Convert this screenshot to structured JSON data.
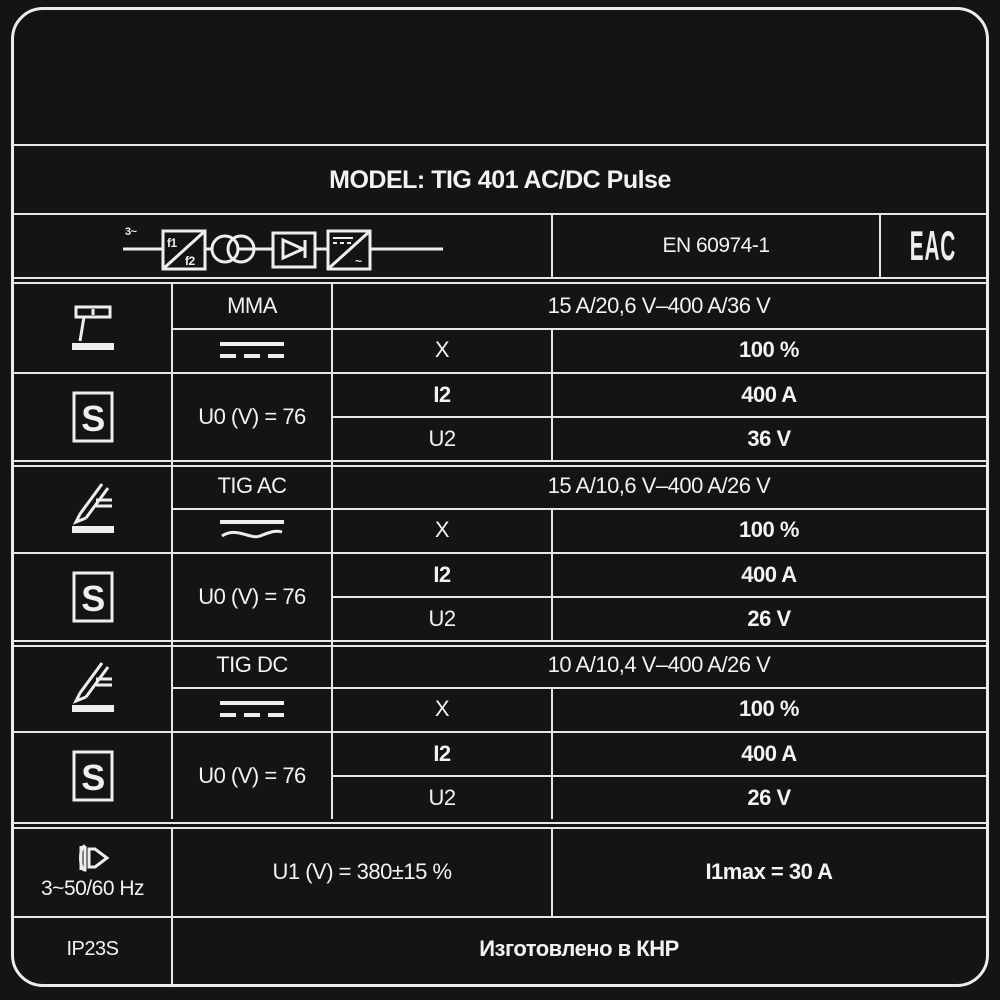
{
  "model_title": "MODEL: TIG 401 AC/DC Pulse",
  "circuit": {
    "supply_label": "3~",
    "f1": "f1",
    "f2": "f2",
    "icon": "inverter-circuit-diagram"
  },
  "standard": "EN 60974-1",
  "certification_mark": "EAC",
  "modes": [
    {
      "name": "MMA",
      "icon": "electrode-holder-icon",
      "current_type": "dc",
      "range": "15 A/20,6 V–400 A/36 V",
      "x_label": "X",
      "duty": "100 %",
      "u0": "U0 (V) = 76",
      "i2_label": "I2",
      "i2": "400 A",
      "u2_label": "U2",
      "u2": "36 V"
    },
    {
      "name": "TIG AC",
      "icon": "tig-torch-icon",
      "current_type": "ac",
      "range": "15 A/10,6 V–400 A/26 V",
      "x_label": "X",
      "duty": "100 %",
      "u0": "U0 (V) = 76",
      "i2_label": "I2",
      "i2": "400 A",
      "u2_label": "U2",
      "u2": "26 V"
    },
    {
      "name": "TIG DC",
      "icon": "tig-torch-icon",
      "current_type": "dc",
      "range": "10 A/10,4 V–400 A/26 V",
      "x_label": "X",
      "duty": "100 %",
      "u0": "U0 (V) = 76",
      "i2_label": "I2",
      "i2": "400 A",
      "u2_label": "U2",
      "u2": "26 V"
    }
  ],
  "supply": {
    "frequency": "3~50/60 Hz",
    "u1": "U1 (V) = 380±15 %",
    "i1max": "I1max = 30 A"
  },
  "protection": "IP23S",
  "made_in": "Изготовлено в КНР"
}
